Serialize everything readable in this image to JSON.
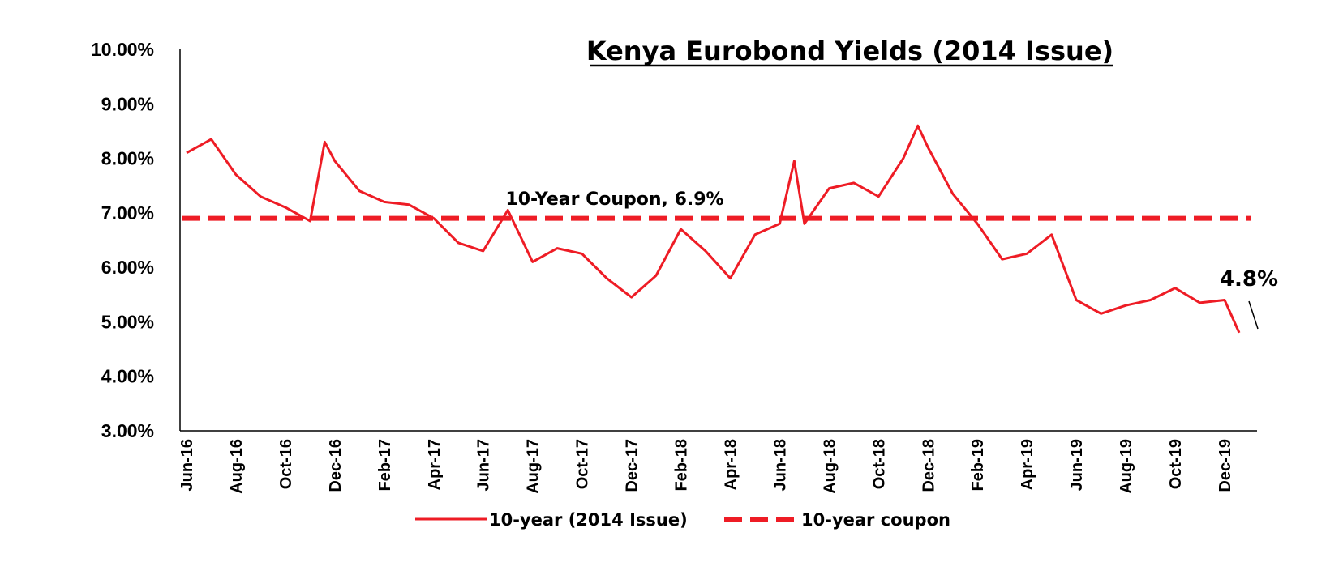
{
  "chart_data": {
    "type": "line",
    "title": "Kenya Eurobond Yields (2014 Issue)",
    "xlabel": "",
    "ylabel": "",
    "ylim": [
      0.03,
      0.1
    ],
    "y_tick_labels": [
      "10.00%",
      "9.00%",
      "8.00%",
      "7.00%",
      "6.00%",
      "5.00%",
      "4.00%",
      "3.00%"
    ],
    "x_tick_labels": [
      "Jun-16",
      "Aug-16",
      "Oct-16",
      "Dec-16",
      "Feb-17",
      "Apr-17",
      "Jun-17",
      "Aug-17",
      "Oct-17",
      "Dec-17",
      "Feb-18",
      "Apr-18",
      "Jun-18",
      "Aug-18",
      "Oct-18",
      "Dec-18",
      "Feb-19",
      "Apr-19",
      "Jun-19",
      "Aug-19",
      "Oct-19",
      "Dec-19"
    ],
    "grid": false,
    "legend_position": "bottom",
    "colors": {
      "series": "#ee1c25",
      "axis": "#000000"
    },
    "series": [
      {
        "name": "10-year (2014 Issue)",
        "style": "solid",
        "x": [
          "Jun-16",
          "Jul-16",
          "Aug-16",
          "Sep-16",
          "Oct-16",
          "Nov-16",
          "Nov-16",
          "Dec-16",
          "Jan-17",
          "Feb-17",
          "Mar-17",
          "Apr-17",
          "May-17",
          "Jun-17",
          "Jul-17",
          "Aug-17",
          "Sep-17",
          "Oct-17",
          "Nov-17",
          "Dec-17",
          "Jan-18",
          "Feb-18",
          "Mar-18",
          "Apr-18",
          "May-18",
          "Jun-18",
          "Jun-18",
          "Jul-18",
          "Aug-18",
          "Sep-18",
          "Oct-18",
          "Nov-18",
          "Nov-18",
          "Dec-18",
          "Jan-19",
          "Feb-19",
          "Mar-19",
          "Apr-19",
          "May-19",
          "Jun-19",
          "Jul-19",
          "Aug-19",
          "Sep-19",
          "Oct-19",
          "Nov-19",
          "Dec-19",
          "Dec-19"
        ],
        "values": [
          0.081,
          0.0835,
          0.077,
          0.073,
          0.071,
          0.0685,
          0.083,
          0.0795,
          0.074,
          0.072,
          0.0715,
          0.069,
          0.0645,
          0.063,
          0.0705,
          0.061,
          0.0635,
          0.0625,
          0.058,
          0.0545,
          0.0585,
          0.067,
          0.063,
          0.058,
          0.066,
          0.068,
          0.0795,
          0.068,
          0.0745,
          0.0755,
          0.073,
          0.08,
          0.086,
          0.082,
          0.0735,
          0.068,
          0.0615,
          0.0625,
          0.066,
          0.054,
          0.0515,
          0.053,
          0.054,
          0.0562,
          0.0535,
          0.054,
          0.048
        ]
      },
      {
        "name": "10-year coupon",
        "style": "dashed",
        "value": 0.069
      }
    ],
    "annotations": [
      {
        "text": "10-Year Coupon, 6.9%"
      },
      {
        "text": "4.8%"
      }
    ]
  }
}
